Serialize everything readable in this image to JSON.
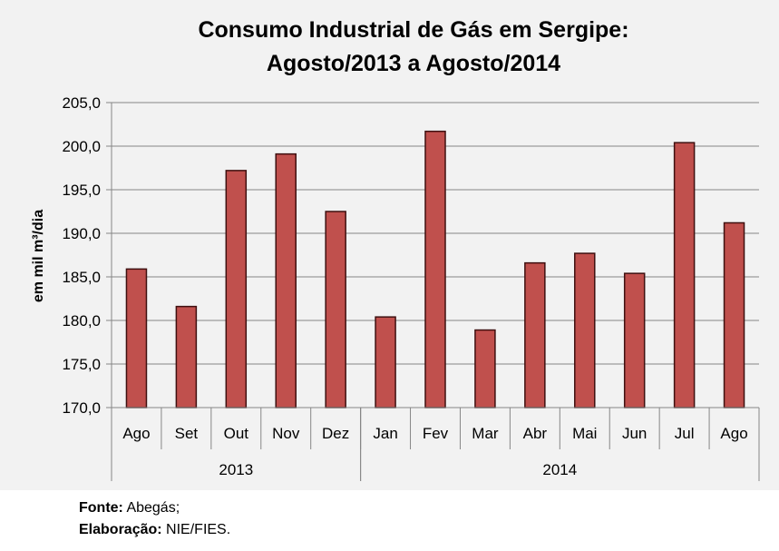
{
  "chart_data": {
    "type": "bar",
    "title": [
      "Consumo Industrial de Gás em Sergipe:",
      "Agosto/2013 a Agosto/2014"
    ],
    "xlabel": "",
    "ylabel": "em mil m³/dia",
    "ylim": [
      170,
      205
    ],
    "yticks": [
      170,
      175,
      180,
      185,
      190,
      195,
      200,
      205
    ],
    "ytick_labels": [
      "170,0",
      "175,0",
      "180,0",
      "185,0",
      "190,0",
      "195,0",
      "200,0",
      "205,0"
    ],
    "grid": true,
    "categories": [
      "Ago",
      "Set",
      "Out",
      "Nov",
      "Dez",
      "Jan",
      "Fev",
      "Mar",
      "Abr",
      "Mai",
      "Jun",
      "Jul",
      "Ago"
    ],
    "groups": [
      {
        "label": "2013",
        "count": 5
      },
      {
        "label": "2014",
        "count": 8
      }
    ],
    "values": [
      185.9,
      181.6,
      197.2,
      199.1,
      192.5,
      180.4,
      201.7,
      178.9,
      186.6,
      187.7,
      185.4,
      200.4,
      191.2
    ],
    "bar_color": "#c0504d",
    "bar_edge_color": "#3f1010"
  },
  "footer": {
    "source_label": "Fonte:",
    "source_value": "Abegás;",
    "credit_label": "Elaboração:",
    "credit_value": "NIE/FIES."
  }
}
